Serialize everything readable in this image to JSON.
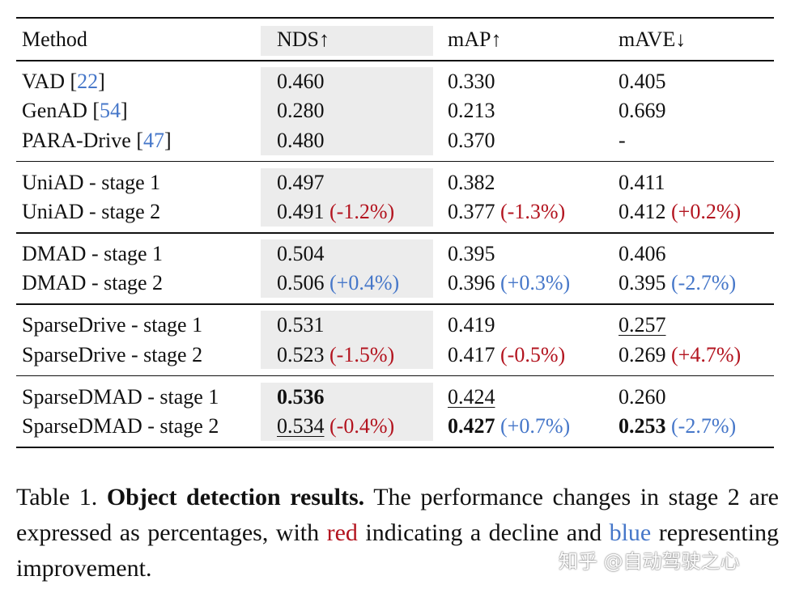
{
  "table": {
    "header": [
      "Method",
      "NDS↑",
      "mAP↑",
      "mAVE↓"
    ],
    "groups": [
      {
        "rows": [
          {
            "method": [
              {
                "text": "VAD ["
              },
              {
                "text": "22",
                "cite": true
              },
              {
                "text": "]"
              }
            ],
            "cells": [
              {
                "value": "0.460"
              },
              {
                "value": "0.330"
              },
              {
                "value": "0.405"
              }
            ]
          },
          {
            "method": [
              {
                "text": "GenAD ["
              },
              {
                "text": "54",
                "cite": true
              },
              {
                "text": "]"
              }
            ],
            "cells": [
              {
                "value": "0.280"
              },
              {
                "value": "0.213"
              },
              {
                "value": "0.669"
              }
            ]
          },
          {
            "method": [
              {
                "text": "PARA-Drive ["
              },
              {
                "text": "47",
                "cite": true
              },
              {
                "text": "]"
              }
            ],
            "cells": [
              {
                "value": "0.480"
              },
              {
                "value": "0.370"
              },
              {
                "value": "-"
              }
            ]
          }
        ]
      },
      {
        "rows": [
          {
            "method": [
              {
                "text": "UniAD - stage 1"
              }
            ],
            "cells": [
              {
                "value": "0.497"
              },
              {
                "value": "0.382"
              },
              {
                "value": "0.411"
              }
            ]
          },
          {
            "method": [
              {
                "text": "UniAD - stage 2"
              }
            ],
            "cells": [
              {
                "value": "0.491",
                "change": "(-1.2%)",
                "change_color": "red"
              },
              {
                "value": "0.377",
                "change": "(-1.3%)",
                "change_color": "red"
              },
              {
                "value": "0.412",
                "change": "(+0.2%)",
                "change_color": "red"
              }
            ]
          }
        ]
      },
      {
        "rows": [
          {
            "method": [
              {
                "text": "DMAD - stage 1"
              }
            ],
            "cells": [
              {
                "value": "0.504"
              },
              {
                "value": "0.395"
              },
              {
                "value": "0.406"
              }
            ]
          },
          {
            "method": [
              {
                "text": "DMAD - stage 2"
              }
            ],
            "cells": [
              {
                "value": "0.506",
                "change": "(+0.4%)",
                "change_color": "blue"
              },
              {
                "value": "0.396",
                "change": "(+0.3%)",
                "change_color": "blue"
              },
              {
                "value": "0.395",
                "change": "(-2.7%)",
                "change_color": "blue"
              }
            ]
          }
        ]
      },
      {
        "rows": [
          {
            "method": [
              {
                "text": "SparseDrive - stage 1"
              }
            ],
            "cells": [
              {
                "value": "0.531"
              },
              {
                "value": "0.419"
              },
              {
                "value": "0.257",
                "style": "underline"
              }
            ]
          },
          {
            "method": [
              {
                "text": "SparseDrive - stage 2"
              }
            ],
            "cells": [
              {
                "value": "0.523",
                "change": "(-1.5%)",
                "change_color": "red"
              },
              {
                "value": "0.417",
                "change": "(-0.5%)",
                "change_color": "red"
              },
              {
                "value": "0.269",
                "change": "(+4.7%)",
                "change_color": "red"
              }
            ]
          }
        ]
      },
      {
        "rows": [
          {
            "method": [
              {
                "text": "SparseDMAD - stage 1"
              }
            ],
            "cells": [
              {
                "value": "0.536",
                "style": "bold"
              },
              {
                "value": "0.424",
                "style": "underline"
              },
              {
                "value": "0.260"
              }
            ]
          },
          {
            "method": [
              {
                "text": "SparseDMAD - stage 2"
              }
            ],
            "cells": [
              {
                "value": "0.534",
                "style": "underline",
                "change": "(-0.4%)",
                "change_color": "red"
              },
              {
                "value": "0.427",
                "style": "bold",
                "change": "(+0.7%)",
                "change_color": "blue"
              },
              {
                "value": "0.253",
                "style": "bold",
                "change": "(-2.7%)",
                "change_color": "blue"
              }
            ]
          }
        ]
      }
    ]
  },
  "caption": [
    {
      "text": "Table 1. "
    },
    {
      "text": "Object detection results.",
      "style": "bold"
    },
    {
      "text": " The performance changes in stage 2 are expressed as percentages, with "
    },
    {
      "text": "red",
      "color": "red"
    },
    {
      "text": " indicating a decline and "
    },
    {
      "text": "blue",
      "color": "blue"
    },
    {
      "text": " representing improvement."
    }
  ],
  "watermark": "知乎 @自动驾驶之心"
}
